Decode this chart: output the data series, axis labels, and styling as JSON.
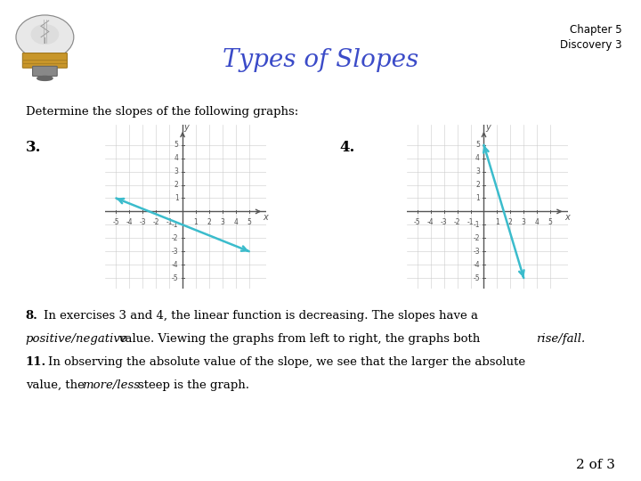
{
  "title": "Types of Slopes",
  "title_color": "#3B4BC8",
  "chapter_text": "Chapter 5\nDiscovery 3",
  "subtitle": "Determine the slopes of the following graphs:",
  "bg_color": "#FFFFFF",
  "graph3_label": "3.",
  "graph4_label": "4.",
  "graph3_line": [
    [
      -5,
      1
    ],
    [
      5,
      -3
    ]
  ],
  "graph4_line": [
    [
      0,
      5
    ],
    [
      3,
      -5
    ]
  ],
  "line_color": "#3BBCCC",
  "grid_color": "#CCCCCC",
  "axis_color": "#555555",
  "tick_color": "#555555",
  "axis_range": [
    -5,
    5
  ],
  "page_num": "2 of 3",
  "font_size_body": 9.5,
  "font_size_title": 20,
  "font_size_chapter": 8.5,
  "font_size_label": 12,
  "font_size_page": 11
}
